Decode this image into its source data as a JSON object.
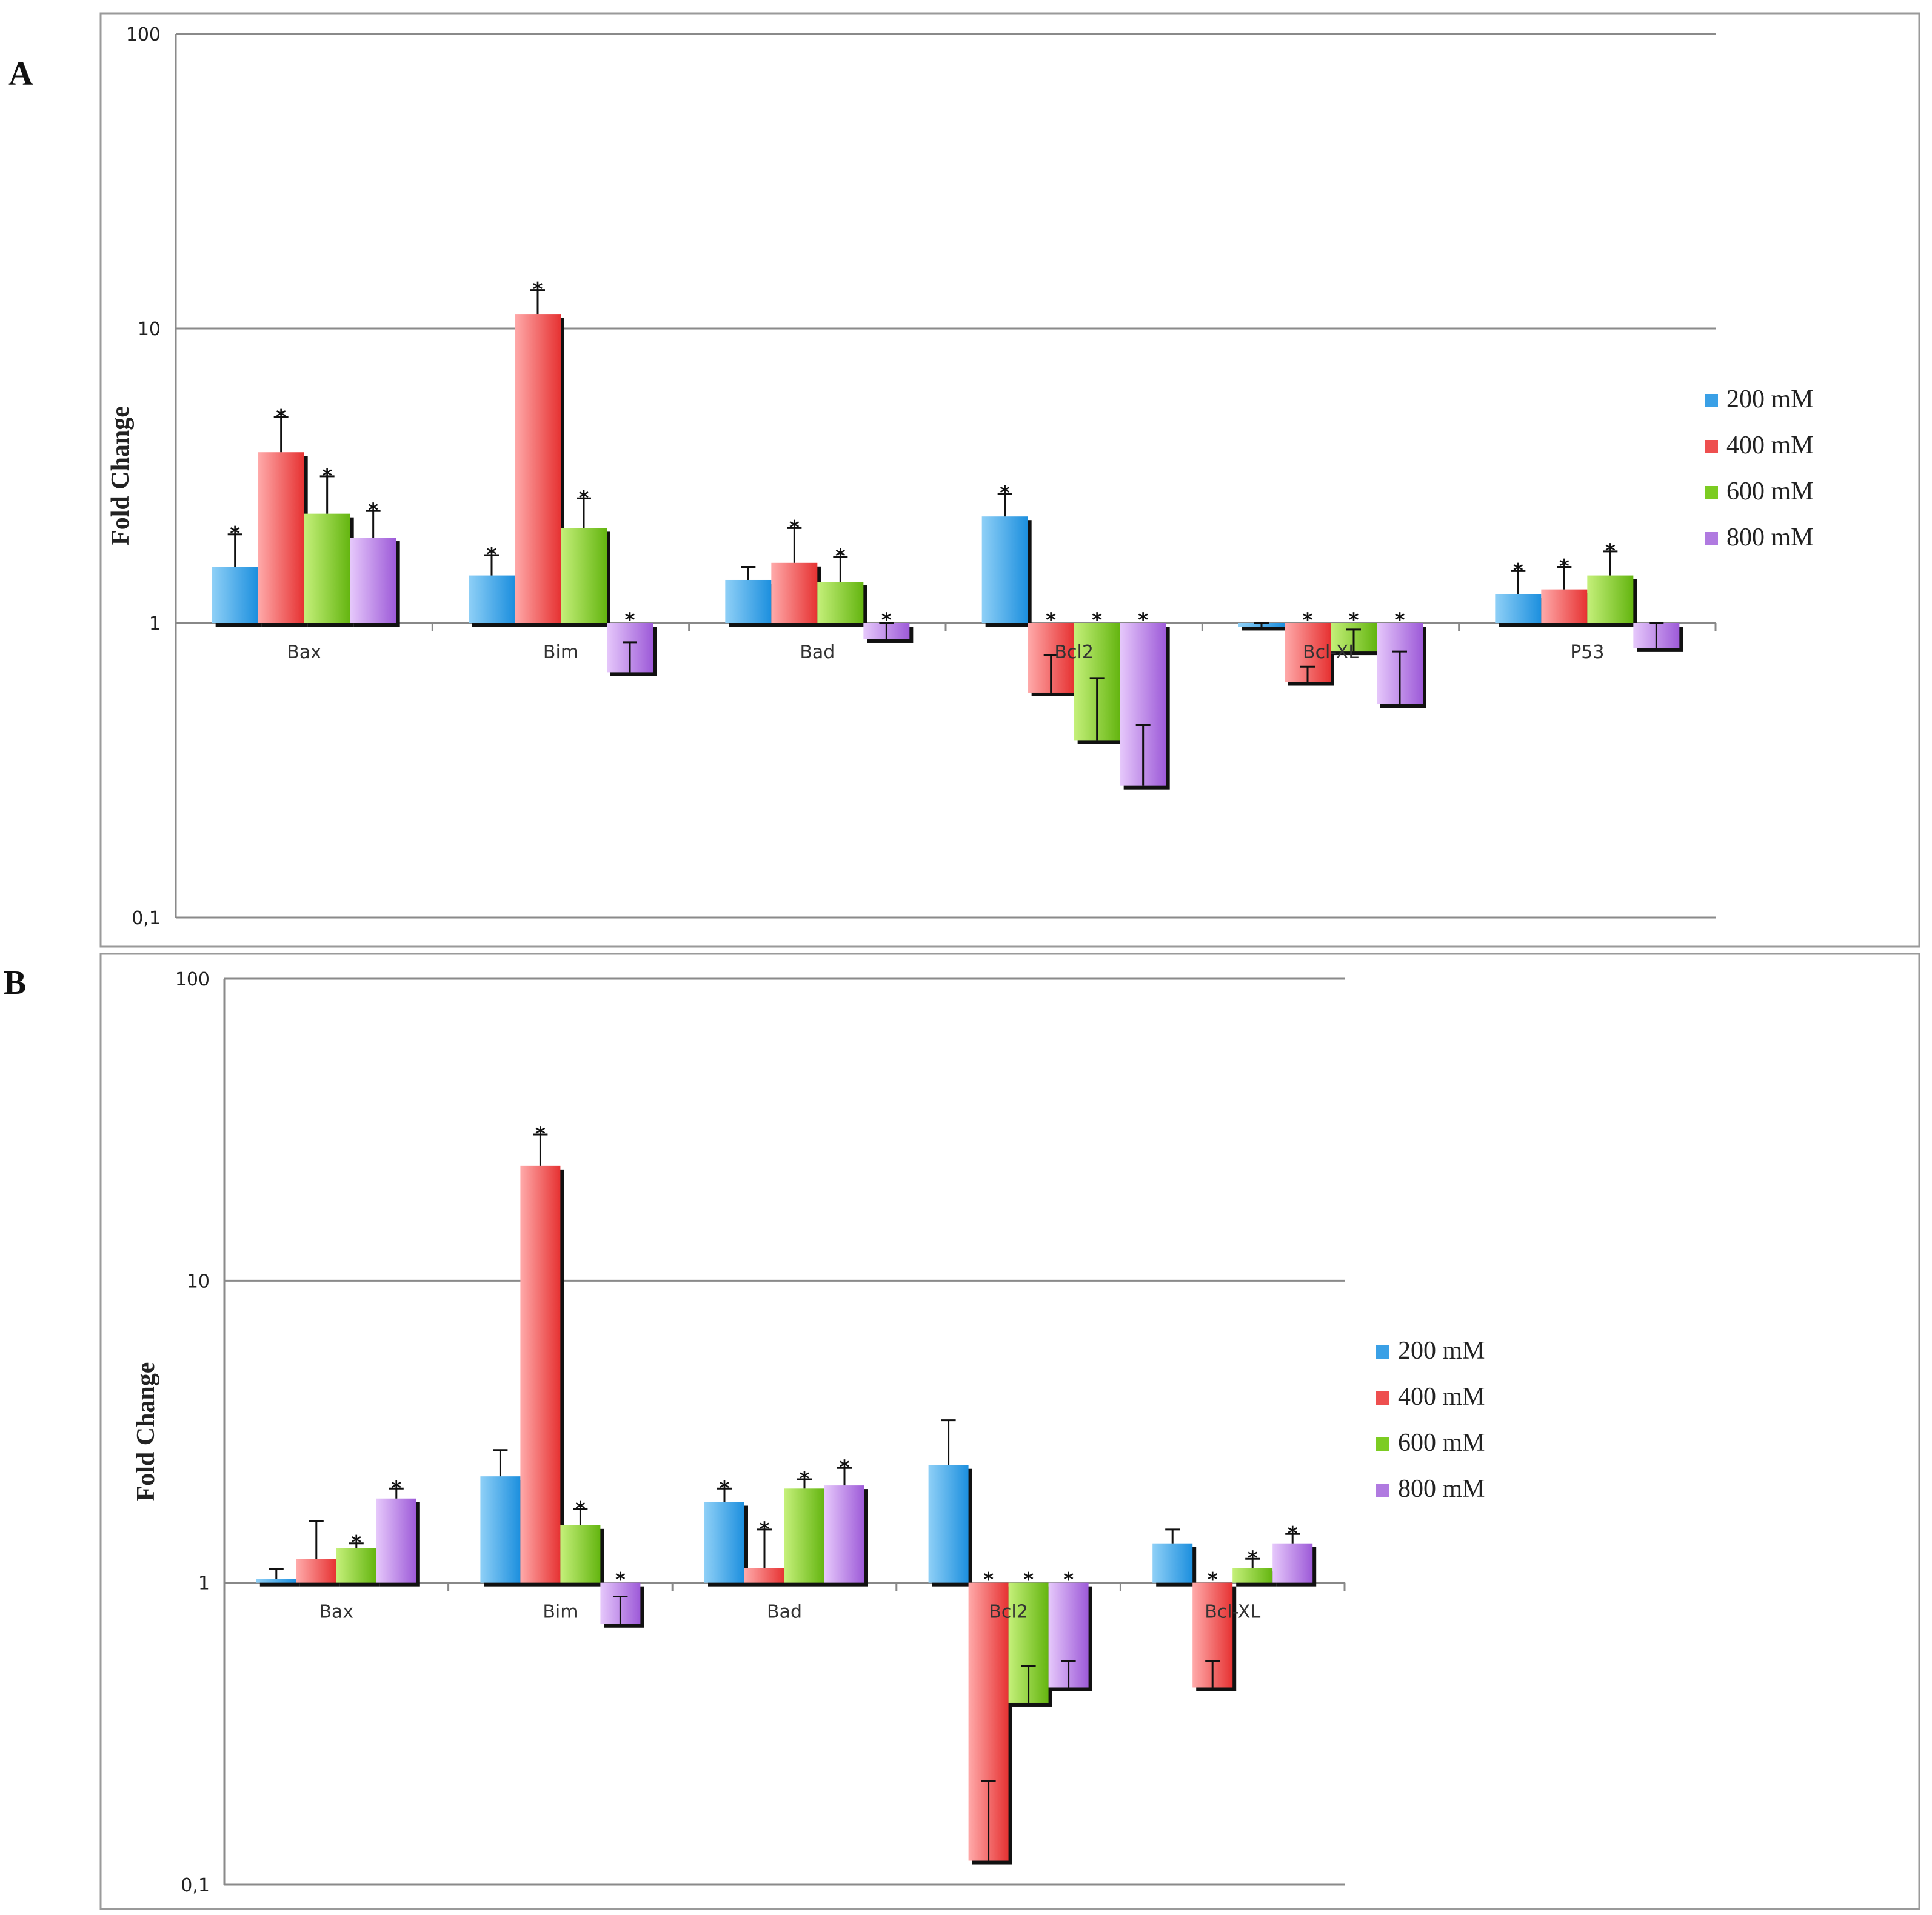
{
  "figure_labels": {
    "a": "A",
    "b": "B"
  },
  "chart_data": [
    {
      "panel": "A",
      "type": "bar",
      "scale": "log",
      "ylabel": "Fold Change",
      "yticks": [
        "0,1",
        "1",
        "10",
        "100"
      ],
      "ylim": [
        0.1,
        100
      ],
      "categories": [
        "Bax",
        "Bim",
        "Bad",
        "Bcl2",
        "Bcl-XL",
        "P53"
      ],
      "legend_position": "right",
      "series": [
        {
          "name": "200 mM",
          "color": "#3aa0e6",
          "values": [
            1.55,
            1.45,
            1.4,
            2.3,
            0.97,
            1.25
          ],
          "errors": [
            0.45,
            0.25,
            0.15,
            0.45,
            0.03,
            0.25
          ],
          "significant": [
            true,
            true,
            false,
            true,
            false,
            true
          ]
        },
        {
          "name": "400 mM",
          "color": "#ee4f4f",
          "values": [
            3.8,
            11.2,
            1.6,
            0.58,
            0.63,
            1.3
          ],
          "errors": [
            1.2,
            2.3,
            0.5,
            0.2,
            0.08,
            0.25
          ],
          "significant": [
            true,
            true,
            true,
            true,
            true,
            true
          ]
        },
        {
          "name": "600 mM",
          "color": "#7ccc22",
          "values": [
            2.35,
            2.1,
            1.38,
            0.4,
            0.8,
            1.45
          ],
          "errors": [
            0.8,
            0.55,
            0.3,
            0.25,
            0.15,
            0.3
          ],
          "significant": [
            true,
            true,
            true,
            true,
            true,
            true
          ]
        },
        {
          "name": "800 mM",
          "color": "#b07ae0",
          "values": [
            1.95,
            0.68,
            0.88,
            0.28,
            0.53,
            0.82
          ],
          "errors": [
            0.45,
            0.18,
            0.55,
            0.17,
            0.27,
            0.37
          ],
          "significant": [
            true,
            true,
            true,
            true,
            true,
            false
          ]
        }
      ]
    },
    {
      "panel": "B",
      "type": "bar",
      "scale": "log",
      "ylabel": "Fold Change",
      "yticks": [
        "0,1",
        "1",
        "10",
        "100"
      ],
      "ylim": [
        0.1,
        100
      ],
      "categories": [
        "Bax",
        "Bim",
        "Bad",
        "Bcl2",
        "Bcl-XL"
      ],
      "legend_position": "right",
      "series": [
        {
          "name": "200 mM",
          "color": "#3aa0e6",
          "values": [
            1.03,
            2.25,
            1.85,
            2.45,
            1.35
          ],
          "errors": [
            0.08,
            0.5,
            0.2,
            1.0,
            0.15
          ],
          "significant": [
            false,
            false,
            true,
            false,
            false
          ]
        },
        {
          "name": "400 mM",
          "color": "#ee4f4f",
          "values": [
            1.2,
            24.0,
            1.12,
            0.12,
            0.45
          ],
          "errors": [
            0.4,
            6.5,
            0.38,
            0.1,
            0.1
          ],
          "significant": [
            false,
            true,
            true,
            true,
            true
          ]
        },
        {
          "name": "600 mM",
          "color": "#7ccc22",
          "values": [
            1.3,
            1.55,
            2.05,
            0.4,
            1.12
          ],
          "errors": [
            0.05,
            0.2,
            0.15,
            0.13,
            0.08
          ],
          "significant": [
            true,
            true,
            true,
            true,
            true
          ]
        },
        {
          "name": "800 mM",
          "color": "#b07ae0",
          "values": [
            1.9,
            0.73,
            2.1,
            0.45,
            1.35
          ],
          "errors": [
            0.15,
            0.17,
            0.3,
            0.1,
            0.1
          ],
          "significant": [
            true,
            true,
            true,
            true,
            true
          ]
        }
      ]
    }
  ]
}
